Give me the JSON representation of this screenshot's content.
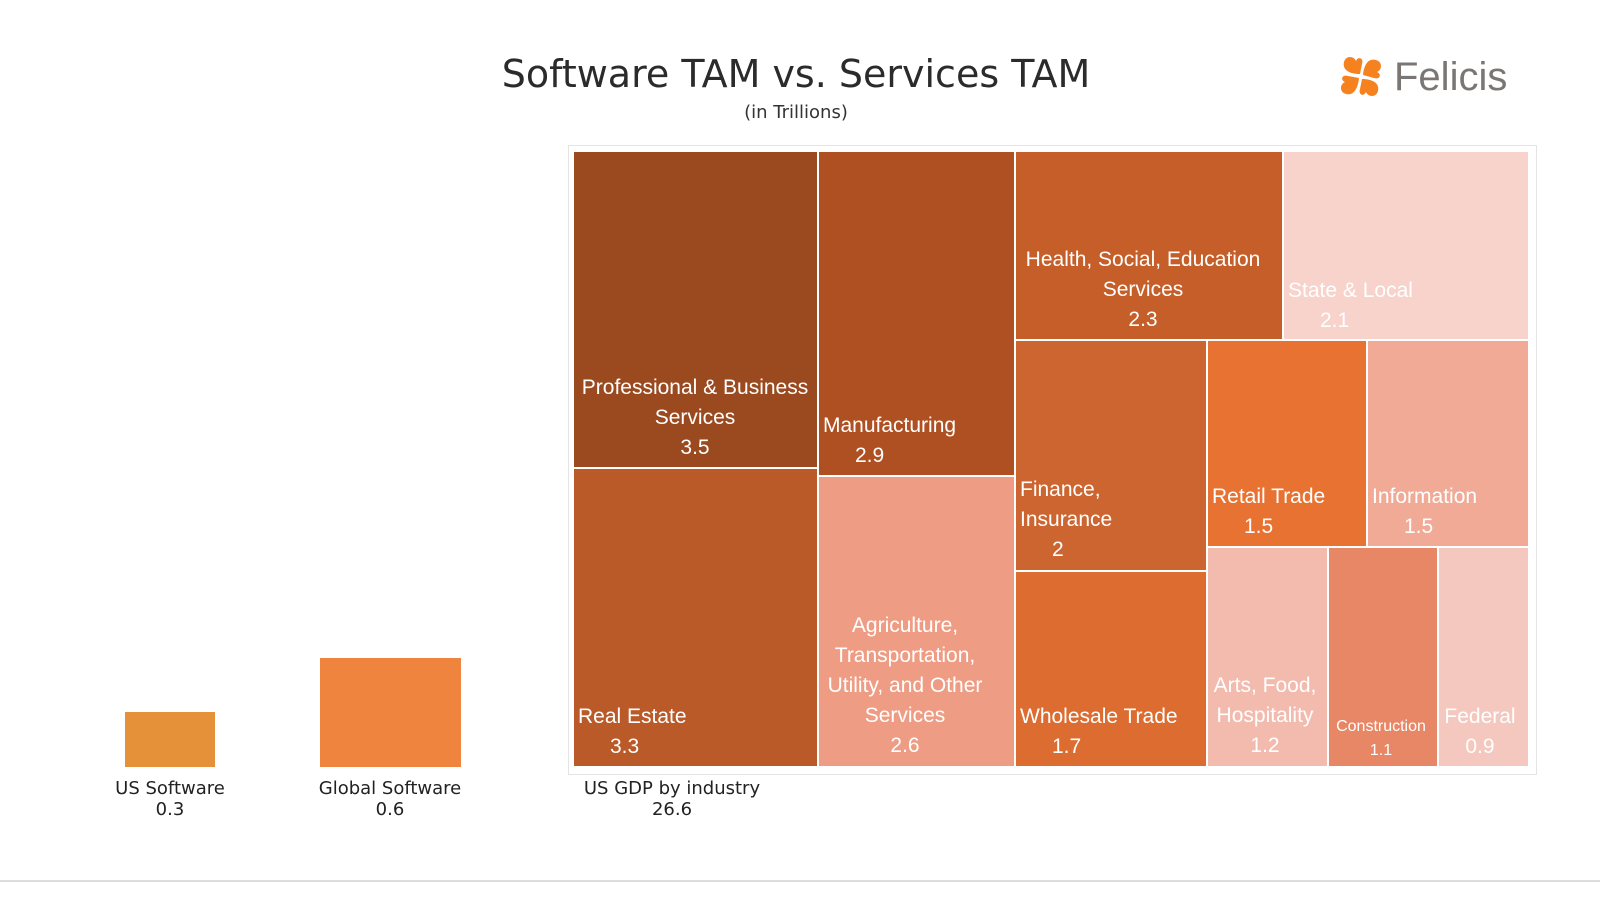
{
  "header": {
    "title": "Software TAM vs. Services TAM",
    "subtitle": "(in Trillions)",
    "logo_text": "Felicis"
  },
  "colors": {
    "logo": "#F5821F"
  },
  "chart_data": [
    {
      "type": "bar",
      "categories": [
        "US Software",
        "Global Software"
      ],
      "values": [
        0.3,
        0.6
      ],
      "value_labels": [
        "0.3",
        "0.6"
      ],
      "colors": [
        "#E5913A",
        "#EE843E"
      ]
    },
    {
      "type": "treemap",
      "total_label": "US GDP by industry",
      "total_value": "26.6",
      "items": [
        {
          "name": "Professional & Business Services",
          "label": "Professional & Business\nServices",
          "value": 3.5,
          "value_label": "3.5",
          "color": "#9B4A20"
        },
        {
          "name": "Real Estate",
          "label": "Real Estate",
          "value": 3.3,
          "value_label": "3.3",
          "color": "#B95A28"
        },
        {
          "name": "Manufacturing",
          "label": "Manufacturing",
          "value": 2.9,
          "value_label": "2.9",
          "color": "#AF5022"
        },
        {
          "name": "Agriculture, Transportation, Utility, and Other Services",
          "label": "Agriculture,\nTransportation,\nUtility, and Other\nServices",
          "value": 2.6,
          "value_label": "2.6",
          "color": "#EE9C84"
        },
        {
          "name": "Health, Social, Education Services",
          "label": "Health, Social, Education\nServices",
          "value": 2.3,
          "value_label": "2.3",
          "color": "#C55E28"
        },
        {
          "name": "State & Local",
          "label": "State & Local",
          "value": 2.1,
          "value_label": "2.1",
          "color": "#F7D3CB"
        },
        {
          "name": "Finance, Insurance",
          "label": "Finance,\nInsurance",
          "value": 2,
          "value_label": "2",
          "color": "#CC6530"
        },
        {
          "name": "Wholesale Trade",
          "label": "Wholesale Trade",
          "value": 1.7,
          "value_label": "1.7",
          "color": "#DC6C30"
        },
        {
          "name": "Retail Trade",
          "label": "Retail Trade",
          "value": 1.5,
          "value_label": "1.5",
          "color": "#E87232"
        },
        {
          "name": "Information",
          "label": "Information",
          "value": 1.5,
          "value_label": "1.5",
          "color": "#F0AA96"
        },
        {
          "name": "Arts, Food, Hospitality",
          "label": "Arts, Food,\nHospitality",
          "value": 1.2,
          "value_label": "1.2",
          "color": "#F2BBAE"
        },
        {
          "name": "Construction",
          "label": "Construction",
          "value": 1.1,
          "value_label": "1.1",
          "color": "#E88766"
        },
        {
          "name": "Federal",
          "label": "Federal",
          "value": 0.9,
          "value_label": "0.9",
          "color": "#F4C8BE"
        }
      ]
    }
  ]
}
